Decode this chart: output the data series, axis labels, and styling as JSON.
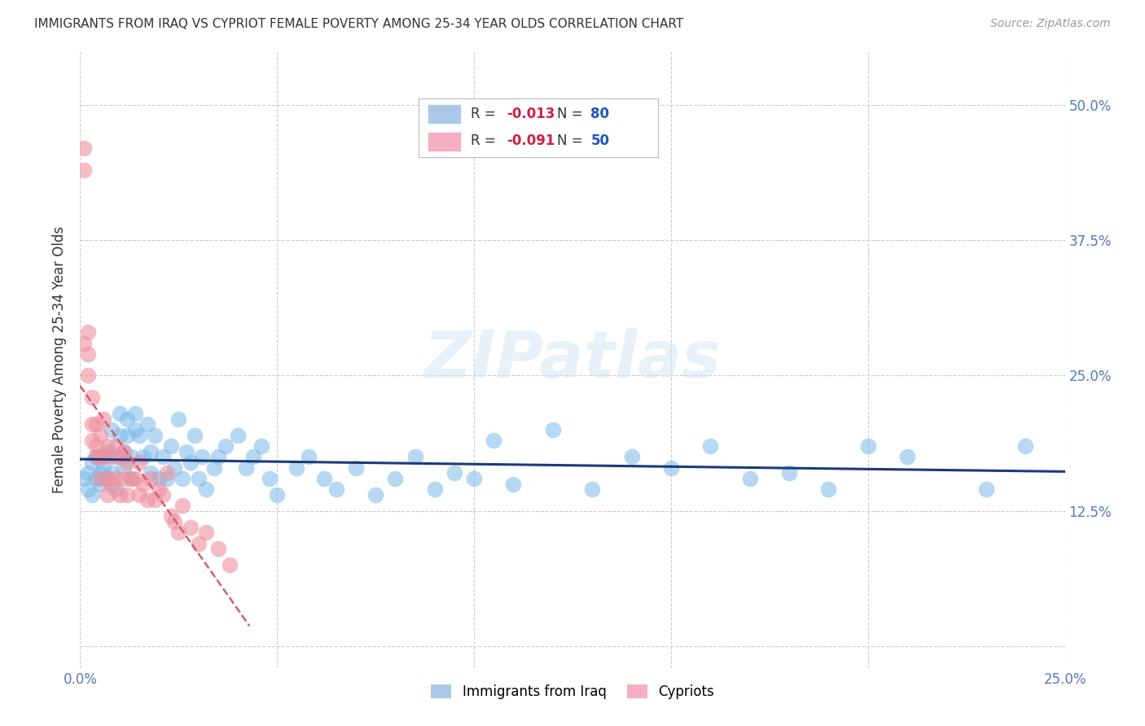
{
  "title": "IMMIGRANTS FROM IRAQ VS CYPRIOT FEMALE POVERTY AMONG 25-34 YEAR OLDS CORRELATION CHART",
  "source": "Source: ZipAtlas.com",
  "ylabel": "Female Poverty Among 25-34 Year Olds",
  "xlim": [
    0.0,
    0.25
  ],
  "ylim": [
    -0.02,
    0.55
  ],
  "xtick_vals": [
    0.0,
    0.05,
    0.1,
    0.15,
    0.2,
    0.25
  ],
  "ytick_vals": [
    0.0,
    0.125,
    0.25,
    0.375,
    0.5
  ],
  "ytick_labels": [
    "",
    "12.5%",
    "25.0%",
    "37.5%",
    "50.0%"
  ],
  "iraq_color": "#7ab8e8",
  "iraq_trend_color": "#1a3a7a",
  "cypriot_color": "#f090a0",
  "cypriot_trend_color": "#d06070",
  "legend_box_color": "#aac8e8",
  "legend_box_color2": "#f4b0c0",
  "iraq_R": "-0.013",
  "iraq_N": "80",
  "cypriot_R": "-0.091",
  "cypriot_N": "50",
  "watermark": "ZIPatlas",
  "background_color": "#ffffff",
  "grid_color": "#cccccc",
  "iraq_x": [
    0.001,
    0.002,
    0.002,
    0.003,
    0.003,
    0.004,
    0.004,
    0.005,
    0.005,
    0.006,
    0.006,
    0.007,
    0.007,
    0.008,
    0.008,
    0.009,
    0.009,
    0.01,
    0.01,
    0.011,
    0.011,
    0.012,
    0.012,
    0.013,
    0.013,
    0.014,
    0.014,
    0.015,
    0.016,
    0.017,
    0.018,
    0.018,
    0.019,
    0.02,
    0.021,
    0.022,
    0.023,
    0.024,
    0.025,
    0.026,
    0.027,
    0.028,
    0.029,
    0.03,
    0.031,
    0.032,
    0.034,
    0.035,
    0.037,
    0.04,
    0.042,
    0.044,
    0.046,
    0.048,
    0.05,
    0.055,
    0.058,
    0.062,
    0.065,
    0.07,
    0.075,
    0.08,
    0.085,
    0.09,
    0.095,
    0.1,
    0.105,
    0.11,
    0.12,
    0.13,
    0.14,
    0.15,
    0.16,
    0.17,
    0.18,
    0.19,
    0.2,
    0.21,
    0.23,
    0.24
  ],
  "iraq_y": [
    0.155,
    0.16,
    0.145,
    0.17,
    0.14,
    0.175,
    0.155,
    0.16,
    0.15,
    0.165,
    0.175,
    0.18,
    0.155,
    0.2,
    0.16,
    0.175,
    0.145,
    0.215,
    0.195,
    0.18,
    0.165,
    0.21,
    0.195,
    0.175,
    0.155,
    0.2,
    0.215,
    0.195,
    0.175,
    0.205,
    0.18,
    0.16,
    0.195,
    0.155,
    0.175,
    0.155,
    0.185,
    0.165,
    0.21,
    0.155,
    0.18,
    0.17,
    0.195,
    0.155,
    0.175,
    0.145,
    0.165,
    0.175,
    0.185,
    0.195,
    0.165,
    0.175,
    0.185,
    0.155,
    0.14,
    0.165,
    0.175,
    0.155,
    0.145,
    0.165,
    0.14,
    0.155,
    0.175,
    0.145,
    0.16,
    0.155,
    0.19,
    0.15,
    0.2,
    0.145,
    0.175,
    0.165,
    0.185,
    0.155,
    0.16,
    0.145,
    0.185,
    0.175,
    0.145,
    0.185
  ],
  "cypriot_x": [
    0.001,
    0.001,
    0.001,
    0.002,
    0.002,
    0.002,
    0.003,
    0.003,
    0.003,
    0.004,
    0.004,
    0.004,
    0.005,
    0.005,
    0.005,
    0.006,
    0.006,
    0.007,
    0.007,
    0.007,
    0.008,
    0.008,
    0.009,
    0.009,
    0.01,
    0.01,
    0.011,
    0.011,
    0.012,
    0.012,
    0.013,
    0.014,
    0.015,
    0.015,
    0.016,
    0.017,
    0.018,
    0.019,
    0.02,
    0.021,
    0.022,
    0.023,
    0.024,
    0.025,
    0.026,
    0.028,
    0.03,
    0.032,
    0.035,
    0.038
  ],
  "cypriot_y": [
    0.46,
    0.44,
    0.28,
    0.29,
    0.27,
    0.25,
    0.23,
    0.205,
    0.19,
    0.205,
    0.185,
    0.175,
    0.195,
    0.175,
    0.155,
    0.21,
    0.175,
    0.185,
    0.155,
    0.14,
    0.175,
    0.15,
    0.185,
    0.155,
    0.175,
    0.14,
    0.18,
    0.155,
    0.17,
    0.14,
    0.155,
    0.155,
    0.17,
    0.14,
    0.15,
    0.135,
    0.155,
    0.135,
    0.145,
    0.14,
    0.16,
    0.12,
    0.115,
    0.105,
    0.13,
    0.11,
    0.095,
    0.105,
    0.09,
    0.075
  ]
}
